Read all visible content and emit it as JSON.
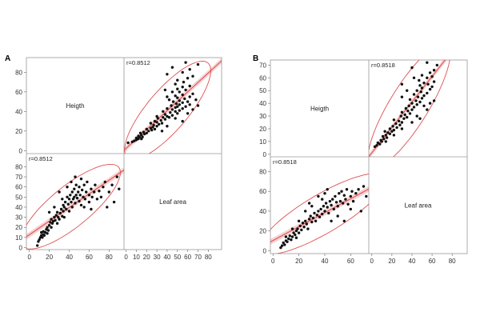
{
  "chart_data": [
    {
      "type": "scatter",
      "panel_label": "A",
      "variables": [
        "Heigth",
        "Leaf area"
      ],
      "correlation_label": "r=0.8512",
      "ticks": {
        "Heigth": [
          0,
          20,
          40,
          60,
          80
        ],
        "Leaf area": [
          0,
          10,
          20,
          30,
          40,
          50,
          60,
          70,
          80
        ]
      },
      "x_ticks_bottom": [
        0,
        20,
        40,
        60,
        80
      ],
      "ranges": {
        "Heigth": [
          -3,
          95
        ],
        "Leaf area": [
          -2,
          93
        ]
      },
      "points": [
        [
          8,
          2
        ],
        [
          9,
          6
        ],
        [
          10,
          8
        ],
        [
          11,
          10
        ],
        [
          12,
          12
        ],
        [
          12,
          15
        ],
        [
          13,
          10
        ],
        [
          14,
          13
        ],
        [
          14,
          16
        ],
        [
          15,
          12
        ],
        [
          16,
          15
        ],
        [
          17,
          18
        ],
        [
          18,
          20
        ],
        [
          18,
          14
        ],
        [
          19,
          17
        ],
        [
          20,
          22
        ],
        [
          21,
          25
        ],
        [
          22,
          20
        ],
        [
          22,
          28
        ],
        [
          23,
          24
        ],
        [
          24,
          26
        ],
        [
          25,
          30
        ],
        [
          26,
          27
        ],
        [
          27,
          32
        ],
        [
          28,
          24
        ],
        [
          28,
          35
        ],
        [
          29,
          30
        ],
        [
          30,
          28
        ],
        [
          31,
          34
        ],
        [
          32,
          38
        ],
        [
          33,
          31
        ],
        [
          34,
          36
        ],
        [
          34,
          42
        ],
        [
          35,
          30
        ],
        [
          35,
          40
        ],
        [
          36,
          45
        ],
        [
          37,
          38
        ],
        [
          38,
          50
        ],
        [
          39,
          43
        ],
        [
          40,
          36
        ],
        [
          40,
          48
        ],
        [
          41,
          52
        ],
        [
          42,
          45
        ],
        [
          43,
          40
        ],
        [
          43,
          55
        ],
        [
          44,
          48
        ],
        [
          45,
          50
        ],
        [
          45,
          58
        ],
        [
          46,
          44
        ],
        [
          47,
          52
        ],
        [
          47,
          62
        ],
        [
          48,
          49
        ],
        [
          49,
          55
        ],
        [
          50,
          46
        ],
        [
          50,
          60
        ],
        [
          51,
          52
        ],
        [
          52,
          68
        ],
        [
          52,
          42
        ],
        [
          53,
          57
        ],
        [
          54,
          50
        ],
        [
          55,
          62
        ],
        [
          56,
          48
        ],
        [
          57,
          55
        ],
        [
          58,
          65
        ],
        [
          60,
          52
        ],
        [
          60,
          45
        ],
        [
          62,
          58
        ],
        [
          63,
          50
        ],
        [
          65,
          55
        ],
        [
          66,
          62
        ],
        [
          68,
          48
        ],
        [
          70,
          56
        ],
        [
          72,
          50
        ],
        [
          74,
          60
        ],
        [
          76,
          65
        ],
        [
          78,
          40
        ],
        [
          80,
          55
        ],
        [
          83,
          62
        ],
        [
          85,
          45
        ],
        [
          88,
          70
        ],
        [
          90,
          58
        ],
        [
          30,
          55
        ],
        [
          25,
          40
        ],
        [
          38,
          60
        ],
        [
          42,
          65
        ],
        [
          46,
          70
        ],
        [
          20,
          35
        ],
        [
          33,
          48
        ],
        [
          55,
          40
        ],
        [
          62,
          38
        ]
      ],
      "fit": {
        "y_from_x": {
          "from": [
            5,
            10
          ],
          "to": [
            90,
            90
          ]
        }
      },
      "ellipse_color": "#e05050",
      "fit_color": "#e05050"
    },
    {
      "type": "scatter",
      "panel_label": "B",
      "variables": [
        "Heigth",
        "Leaf area"
      ],
      "correlation_label": "r=0.8518",
      "ticks": {
        "Heigth": [
          0,
          10,
          20,
          30,
          40,
          50,
          60,
          70
        ],
        "Leaf area": [
          0,
          20,
          40,
          60,
          80
        ]
      },
      "x_ticks_bottom": [
        0,
        20,
        40,
        60,
        80
      ],
      "ranges": {
        "Heigth": [
          -2,
          74
        ],
        "Leaf area": [
          -3,
          95
        ]
      },
      "points": [
        [
          6,
          3
        ],
        [
          7,
          5
        ],
        [
          8,
          8
        ],
        [
          9,
          6
        ],
        [
          10,
          10
        ],
        [
          10,
          14
        ],
        [
          11,
          9
        ],
        [
          12,
          12
        ],
        [
          13,
          15
        ],
        [
          14,
          11
        ],
        [
          15,
          14
        ],
        [
          16,
          18
        ],
        [
          17,
          16
        ],
        [
          18,
          20
        ],
        [
          18,
          13
        ],
        [
          19,
          22
        ],
        [
          20,
          18
        ],
        [
          21,
          25
        ],
        [
          22,
          21
        ],
        [
          23,
          28
        ],
        [
          24,
          24
        ],
        [
          25,
          30
        ],
        [
          26,
          27
        ],
        [
          27,
          22
        ],
        [
          28,
          32
        ],
        [
          29,
          35
        ],
        [
          30,
          29
        ],
        [
          31,
          33
        ],
        [
          32,
          38
        ],
        [
          33,
          30
        ],
        [
          34,
          36
        ],
        [
          35,
          40
        ],
        [
          36,
          34
        ],
        [
          37,
          42
        ],
        [
          38,
          37
        ],
        [
          39,
          45
        ],
        [
          40,
          40
        ],
        [
          41,
          48
        ],
        [
          42,
          44
        ],
        [
          43,
          38
        ],
        [
          44,
          50
        ],
        [
          45,
          46
        ],
        [
          46,
          52
        ],
        [
          47,
          42
        ],
        [
          48,
          55
        ],
        [
          49,
          49
        ],
        [
          50,
          45
        ],
        [
          51,
          58
        ],
        [
          52,
          50
        ],
        [
          53,
          60
        ],
        [
          54,
          48
        ],
        [
          55,
          56
        ],
        [
          56,
          52
        ],
        [
          57,
          62
        ],
        [
          58,
          47
        ],
        [
          60,
          55
        ],
        [
          61,
          60
        ],
        [
          62,
          50
        ],
        [
          64,
          58
        ],
        [
          66,
          62
        ],
        [
          68,
          40
        ],
        [
          70,
          65
        ],
        [
          72,
          55
        ],
        [
          75,
          60
        ],
        [
          80,
          45
        ],
        [
          85,
          62
        ],
        [
          90,
          50
        ],
        [
          30,
          45
        ],
        [
          35,
          55
        ],
        [
          40,
          58
        ],
        [
          28,
          48
        ],
        [
          45,
          30
        ],
        [
          50,
          35
        ],
        [
          25,
          40
        ],
        [
          55,
          30
        ],
        [
          20,
          30
        ],
        [
          42,
          62
        ],
        [
          38,
          52
        ],
        [
          60,
          42
        ],
        [
          15,
          22
        ]
      ],
      "fit": {
        "y_from_x": {
          "from": [
            5,
            8
          ],
          "to": [
            72,
            72
          ]
        }
      },
      "ellipse_color": "#e05050",
      "fit_color": "#e05050"
    }
  ]
}
